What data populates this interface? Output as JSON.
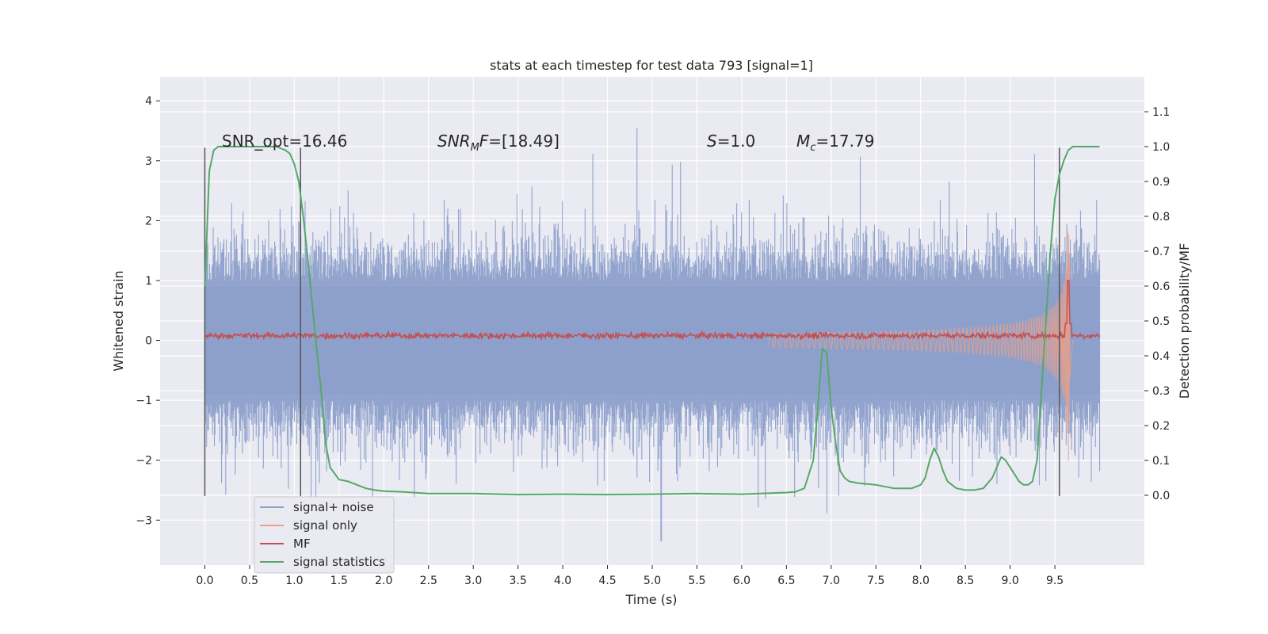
{
  "chart_data": {
    "type": "line",
    "title": "stats at each timestep for test data 793 [signal=1]",
    "xlabel": "Time (s)",
    "ylabel_left": "Whitened strain",
    "ylabel_right": "Detection probability/MF",
    "xlim": [
      -0.5,
      10.5
    ],
    "ylim_left": [
      -3.75,
      4.4
    ],
    "ylim_right": [
      -0.2,
      1.2
    ],
    "x_ticks": [
      0.0,
      0.5,
      1.0,
      1.5,
      2.0,
      2.5,
      3.0,
      3.5,
      4.0,
      4.5,
      5.0,
      5.5,
      6.0,
      6.5,
      7.0,
      7.5,
      8.0,
      8.5,
      9.0,
      9.5
    ],
    "x_tick_labels": [
      "0.0",
      "0.5",
      "1.0",
      "1.5",
      "2.0",
      "2.5",
      "3.0",
      "3.5",
      "4.0",
      "4.5",
      "5.0",
      "5.5",
      "6.0",
      "6.5",
      "7.0",
      "7.5",
      "8.0",
      "8.5",
      "9.0",
      "9.5"
    ],
    "y_ticks_left": [
      -3,
      -2,
      -1,
      0,
      1,
      2,
      3,
      4
    ],
    "y_tick_labels_left": [
      "−3",
      "−2",
      "−1",
      "0",
      "1",
      "2",
      "3",
      "4"
    ],
    "y_ticks_right": [
      0.0,
      0.1,
      0.2,
      0.3,
      0.4,
      0.5,
      0.6,
      0.7,
      0.8,
      0.9,
      1.0,
      1.1
    ],
    "y_tick_labels_right": [
      "0.0",
      "0.1",
      "0.2",
      "0.3",
      "0.4",
      "0.5",
      "0.6",
      "0.7",
      "0.8",
      "0.9",
      "1.0",
      "1.1"
    ],
    "grid": true,
    "legend_position": "lower-left",
    "annotations": [
      {
        "id": "snr-opt",
        "text": "SNR_opt=16.46",
        "x": 0.2,
        "y": 3.3
      },
      {
        "id": "snr-mf",
        "text": "SNRMF=[18.49]",
        "x": 2.6,
        "y": 3.3
      },
      {
        "id": "s-value",
        "text": "S=1.0",
        "x": 5.6,
        "y": 3.3
      },
      {
        "id": "mc-value",
        "text": "Mc=17.79",
        "x": 6.6,
        "y": 3.3
      }
    ],
    "vertical_markers": [
      {
        "x": 0.0,
        "y_from": -2.6,
        "y_to": 3.22
      },
      {
        "x": 1.07,
        "y_from": -2.6,
        "y_to": 3.22
      },
      {
        "x": 9.55,
        "y_from": -2.6,
        "y_to": 3.22
      }
    ],
    "series": [
      {
        "name": "signal+ noise",
        "color": "#8da0cb",
        "axis": "left",
        "description_type": "noise-envelope",
        "x_start": 0.0,
        "x_end": 10.0,
        "envelope_sigma": 0.62,
        "spike_max": 3.55,
        "spike_min": -3.35
      },
      {
        "name": "signal only",
        "color": "#e8a08a",
        "axis": "left",
        "description_type": "chirp",
        "x_start": 6.3,
        "x_end": 9.7,
        "peak_x": 9.65,
        "peak_amplitude": 2.25
      },
      {
        "name": "MF",
        "color": "#c44e52",
        "axis": "left",
        "description_type": "flat-noisy",
        "x_start": 0.0,
        "x_end": 10.0,
        "mean": 0.08,
        "peak_x": 9.65,
        "peak_value": 1.0
      },
      {
        "name": "signal statistics",
        "color": "#55a868",
        "axis": "right",
        "x": [
          0.0,
          0.05,
          0.1,
          0.15,
          0.2,
          0.3,
          0.4,
          0.5,
          0.6,
          0.7,
          0.8,
          0.9,
          0.95,
          1.0,
          1.05,
          1.1,
          1.15,
          1.2,
          1.25,
          1.3,
          1.35,
          1.4,
          1.5,
          1.6,
          1.7,
          1.8,
          1.9,
          2.0,
          2.2,
          2.5,
          3.0,
          3.5,
          4.0,
          4.5,
          5.0,
          5.5,
          6.0,
          6.5,
          6.6,
          6.7,
          6.8,
          6.85,
          6.9,
          6.95,
          7.0,
          7.05,
          7.1,
          7.15,
          7.2,
          7.3,
          7.5,
          7.7,
          7.9,
          8.0,
          8.05,
          8.1,
          8.15,
          8.2,
          8.25,
          8.3,
          8.4,
          8.5,
          8.6,
          8.7,
          8.8,
          8.9,
          8.95,
          9.0,
          9.05,
          9.1,
          9.15,
          9.2,
          9.25,
          9.3,
          9.35,
          9.4,
          9.45,
          9.5,
          9.55,
          9.6,
          9.65,
          9.7,
          9.75,
          9.8,
          9.9,
          10.0
        ],
        "values": [
          0.6,
          0.93,
          0.99,
          1.0,
          1.0,
          1.0,
          1.0,
          1.0,
          1.0,
          1.0,
          1.0,
          0.99,
          0.98,
          0.95,
          0.9,
          0.8,
          0.68,
          0.55,
          0.42,
          0.3,
          0.15,
          0.08,
          0.045,
          0.04,
          0.03,
          0.02,
          0.015,
          0.012,
          0.01,
          0.005,
          0.005,
          0.002,
          0.003,
          0.002,
          0.003,
          0.005,
          0.003,
          0.008,
          0.01,
          0.02,
          0.1,
          0.25,
          0.42,
          0.41,
          0.25,
          0.15,
          0.07,
          0.05,
          0.04,
          0.035,
          0.03,
          0.02,
          0.02,
          0.03,
          0.05,
          0.1,
          0.135,
          0.11,
          0.07,
          0.04,
          0.02,
          0.015,
          0.015,
          0.02,
          0.05,
          0.11,
          0.1,
          0.08,
          0.06,
          0.04,
          0.03,
          0.03,
          0.04,
          0.1,
          0.3,
          0.5,
          0.7,
          0.85,
          0.92,
          0.96,
          0.99,
          1.0,
          1.0,
          1.0,
          1.0,
          1.0
        ]
      }
    ]
  },
  "legend": {
    "items": [
      {
        "label": "signal+ noise",
        "color": "#8da0cb"
      },
      {
        "label": "signal only",
        "color": "#e8a08a"
      },
      {
        "label": "MF",
        "color": "#c44e52"
      },
      {
        "label": "signal statistics",
        "color": "#55a868"
      }
    ]
  },
  "colors": {
    "plot_background": "#eaeaf2",
    "grid": "#ffffff",
    "marker_line": "#555555"
  }
}
